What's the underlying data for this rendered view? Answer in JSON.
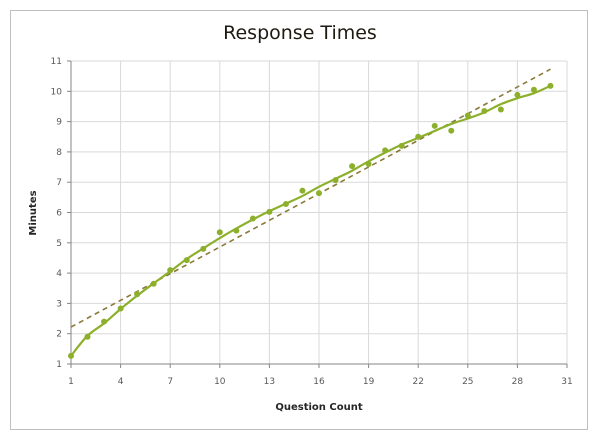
{
  "chart_data": {
    "type": "scatter",
    "title": "Response Times",
    "xlabel": "Question Count",
    "ylabel": "Minutes",
    "xlim": [
      1,
      31
    ],
    "ylim": [
      1,
      11
    ],
    "x_ticks": [
      1,
      4,
      7,
      10,
      13,
      16,
      19,
      22,
      25,
      28,
      31
    ],
    "y_ticks": [
      1,
      2,
      3,
      4,
      5,
      6,
      7,
      8,
      9,
      10,
      11
    ],
    "grid": true,
    "legend": null,
    "series": [
      {
        "name": "Response Time",
        "kind": "scatter+smooth-line",
        "color": "#8db02c",
        "x": [
          1,
          2,
          3,
          4,
          5,
          6,
          7,
          8,
          9,
          10,
          11,
          12,
          13,
          14,
          15,
          16,
          17,
          18,
          19,
          20,
          21,
          22,
          23,
          24,
          25,
          26,
          27,
          28,
          29,
          30
        ],
        "values": [
          1.27,
          1.9,
          2.4,
          2.83,
          3.3,
          3.65,
          4.1,
          4.43,
          4.8,
          5.35,
          5.4,
          5.8,
          6.02,
          6.28,
          6.72,
          6.64,
          7.07,
          7.53,
          7.6,
          8.05,
          8.2,
          8.5,
          8.86,
          8.7,
          9.2,
          9.35,
          9.4,
          9.88,
          10.05,
          10.18
        ]
      },
      {
        "name": "Linear trendline",
        "kind": "dashed-line",
        "color": "#8a7a3a",
        "x": [
          1,
          30
        ],
        "values": [
          2.22,
          10.73
        ]
      }
    ]
  },
  "colors": {
    "series": "#8db02c",
    "trend": "#8a7a3a",
    "grid": "#d9d9d9",
    "axis": "#868686"
  }
}
